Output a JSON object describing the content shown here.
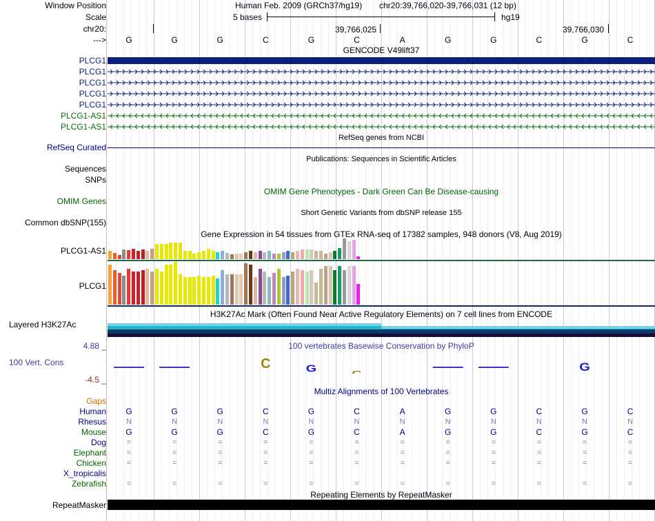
{
  "header": {
    "window_position_label": "Window Position",
    "scale_label": "Scale",
    "chrom_label": "chr20:",
    "strand_label": "--->",
    "assembly_title": "Human Feb. 2009 (GRCh37/hg19)",
    "position": "chr20:39,766,020-39,766,031 (12 bp)",
    "scale_text": "5 bases",
    "db": "hg19",
    "coord_1": "39,766,025",
    "coord_2": "39,766,030"
  },
  "sequence": [
    "G",
    "G",
    "G",
    "C",
    "G",
    "C",
    "A",
    "G",
    "G",
    "C",
    "G",
    "C"
  ],
  "gencode": {
    "title": "GENCODE V49lift37",
    "genes": [
      {
        "name": "PLCG1",
        "type": "thick",
        "color": "#0a1f7a"
      },
      {
        "name": "PLCG1",
        "type": "intron-fwd",
        "color": "#0a1f7a"
      },
      {
        "name": "PLCG1",
        "type": "intron-fwd",
        "color": "#0a1f7a"
      },
      {
        "name": "PLCG1",
        "type": "intron-fwd",
        "color": "#0a1f7a"
      },
      {
        "name": "PLCG1",
        "type": "intron-fwd",
        "color": "#0a1f7a"
      },
      {
        "name": "PLCG1-AS1",
        "type": "intron-rev",
        "color": "#0b6e0b"
      },
      {
        "name": "PLCG1-AS1",
        "type": "intron-rev",
        "color": "#0b6e0b"
      }
    ]
  },
  "refseq": {
    "label": "RefSeq Curated",
    "title": "RefSeq genes from NCBI"
  },
  "publications": {
    "title": "Publications: Sequences in Scientific Articles",
    "label_sequences": "Sequences",
    "label_snps": "SNPs"
  },
  "omim": {
    "title": "OMIM Gene Phenotypes - Dark Green Can Be Disease-causing",
    "label": "OMIM Genes"
  },
  "dbsnp": {
    "title": "Short Genetic Variants from dbSNP release 155",
    "label": "Common dbSNP(155)"
  },
  "gtex": {
    "title": "Gene Expression in 54 tissues from GTEx RNA-seq of 17382 samples, 948 donors (V8, Aug 2019)",
    "genes": [
      {
        "name": "PLCG1-AS1",
        "values": [
          12,
          9,
          6,
          14,
          13,
          15,
          12,
          14,
          12,
          15,
          22,
          22,
          22,
          24,
          24,
          24,
          12,
          12,
          8,
          10,
          12,
          15,
          12,
          10,
          12,
          9,
          7,
          8,
          8,
          10,
          12,
          10,
          12,
          10,
          12,
          8,
          8,
          10,
          12,
          10,
          12,
          14,
          14,
          14,
          12,
          12,
          8,
          10,
          12,
          16,
          30,
          26,
          28,
          4
        ]
      },
      {
        "name": "PLCG1",
        "values": [
          58,
          50,
          46,
          42,
          52,
          48,
          48,
          50,
          52,
          48,
          52,
          48,
          58,
          58,
          62,
          44,
          40,
          40,
          40,
          42,
          40,
          40,
          42,
          38,
          50,
          44,
          44,
          44,
          44,
          60,
          58,
          40,
          52,
          48,
          40,
          46,
          52,
          40,
          42,
          48,
          52,
          50,
          48,
          50,
          32,
          52,
          56,
          56,
          50,
          56,
          50,
          56,
          56,
          30
        ]
      }
    ],
    "colors": [
      "#f9a23a",
      "#e7622a",
      "#d94f3a",
      "#8c8c8c",
      "#e83a2f",
      "#d02032",
      "#c8202a",
      "#b8202a",
      "#e8b89a",
      "#c8a07a",
      "#e8e800",
      "#e8e800",
      "#e8e800",
      "#e8e800",
      "#e8e800",
      "#e8e800",
      "#e8e800",
      "#e8e800",
      "#e8e800",
      "#e8e800",
      "#e8e800",
      "#e8e800",
      "#e8e800",
      "#1fd3d3",
      "#8ab0d8",
      "#b8b8b8",
      "#9a7a5a",
      "#dcc8b0",
      "#e8c8b8",
      "#a07850",
      "#6a3a20",
      "#dcb8a0",
      "#8a4a90",
      "#b8b8b8",
      "#8ab8c8",
      "#bc8ab8",
      "#a8c838",
      "#9898c8",
      "#3a6ad8",
      "#b8a878",
      "#e8b8b8",
      "#f4a8a8",
      "#b8e8b8",
      "#d8c8b8",
      "#c8b898",
      "#c8b898",
      "#b8a888",
      "#d8c8b8",
      "#0a7a2a",
      "#1a9a6a",
      "#9a9a9a",
      "#d8d8d8",
      "#e8a0e8",
      "#e820e8"
    ]
  },
  "h3k27ac": {
    "title": "H3K27Ac Mark (Often Found Near Active Regulatory Elements) on 7 cell lines from ENCODE",
    "label": "Layered H3K27Ac"
  },
  "conservation": {
    "title": "100 vertebrates Basewise Conservation by PhyloP",
    "label": "100 Vert. Cons",
    "max_label": "4.88 _",
    "min_label": "-4.5 _"
  },
  "multiz": {
    "title": "Multiz Alignments of 100 Vertebrates",
    "gaps_label": "Gaps",
    "species": [
      {
        "name": "Human",
        "row": "GGGCGCAGGCGC",
        "color": "#000080"
      },
      {
        "name": "Rhesus",
        "row": "NNNNNNNNNNNN",
        "color": "#000080"
      },
      {
        "name": "Mouse",
        "row": "GGGCGCAGGCGC",
        "color": "#006400"
      },
      {
        "name": "Dog",
        "row": "============",
        "color": "#000080"
      },
      {
        "name": "Elephant",
        "row": "============",
        "color": "#006400"
      },
      {
        "name": "Chicken",
        "row": "============",
        "color": "#006400"
      },
      {
        "name": "X_tropicalis",
        "row": "",
        "color": "#000080"
      },
      {
        "name": "Zebrafish",
        "row": "============",
        "color": "#006400"
      }
    ]
  },
  "repeatmasker": {
    "title": "Repeating Elements by RepeatMasker",
    "label": "RepeatMasker"
  }
}
